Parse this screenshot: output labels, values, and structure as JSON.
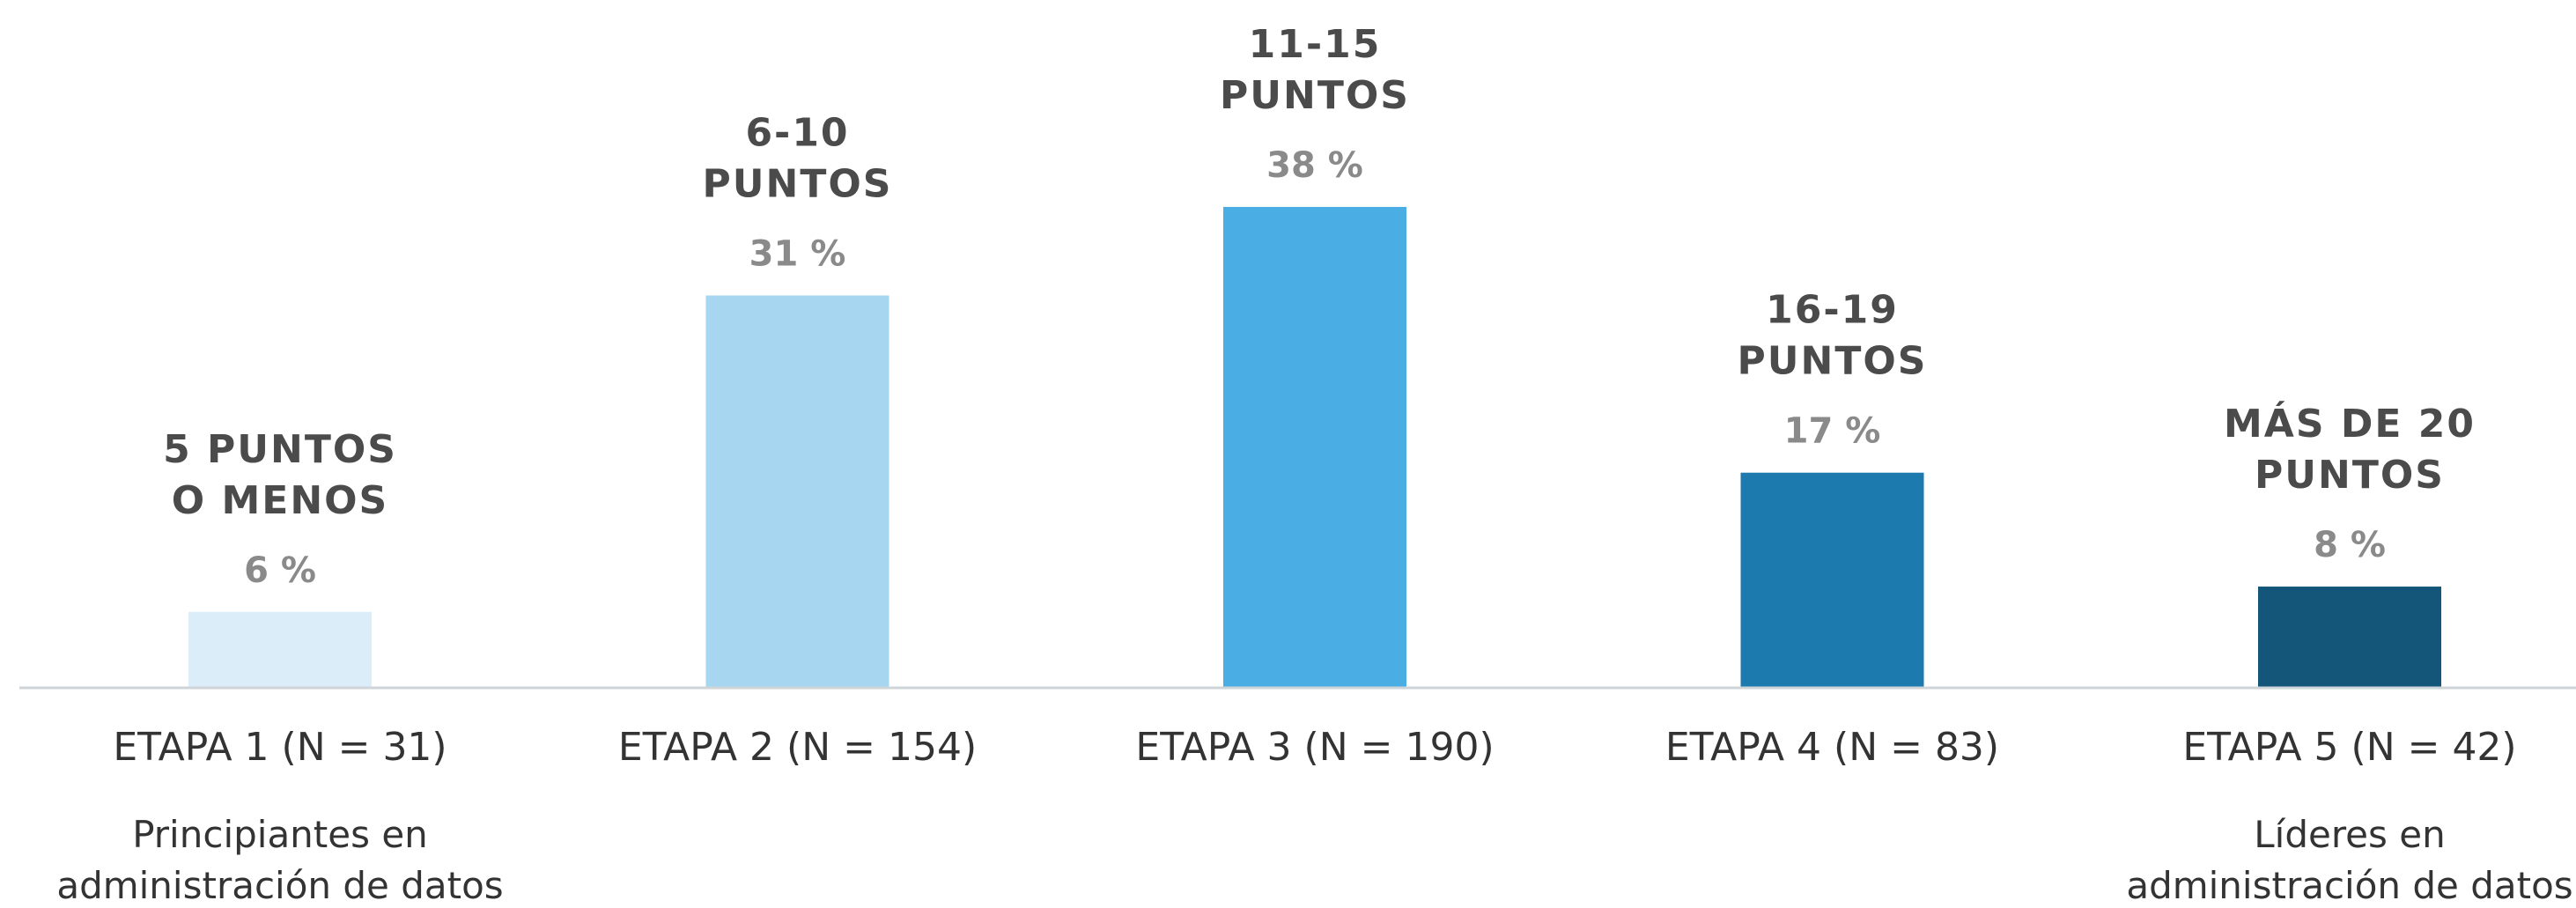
{
  "chart_data": {
    "type": "bar",
    "categories": [
      "ETAPA 1 (N = 31)",
      "ETAPA 2 (N = 154)",
      "ETAPA 3 (N = 190)",
      "ETAPA 4 (N = 83)",
      "ETAPA 5 (N = 42)"
    ],
    "values": [
      6,
      31,
      38,
      17,
      8
    ],
    "value_labels": [
      "6 %",
      "31 %",
      "38 %",
      "17 %",
      "8 %"
    ],
    "range_labels": [
      [
        "5 PUNTOS",
        "O MENOS"
      ],
      [
        "6-10",
        "PUNTOS"
      ],
      [
        "11-15",
        "PUNTOS"
      ],
      [
        "16-19",
        "PUNTOS"
      ],
      [
        "MÁS DE 20",
        "PUNTOS"
      ]
    ],
    "descriptions": [
      [
        "Principiantes en",
        "administración de datos"
      ],
      [],
      [],
      [],
      [
        "Líderes en",
        "administración de datos"
      ]
    ],
    "colors": [
      "#dbedf9",
      "#a6d6f0",
      "#4aade3",
      "#1c7aaf",
      "#14567a"
    ],
    "title": "",
    "xlabel": "",
    "ylabel": "",
    "ylim": [
      0,
      40
    ],
    "grid": false,
    "legend": "none"
  }
}
